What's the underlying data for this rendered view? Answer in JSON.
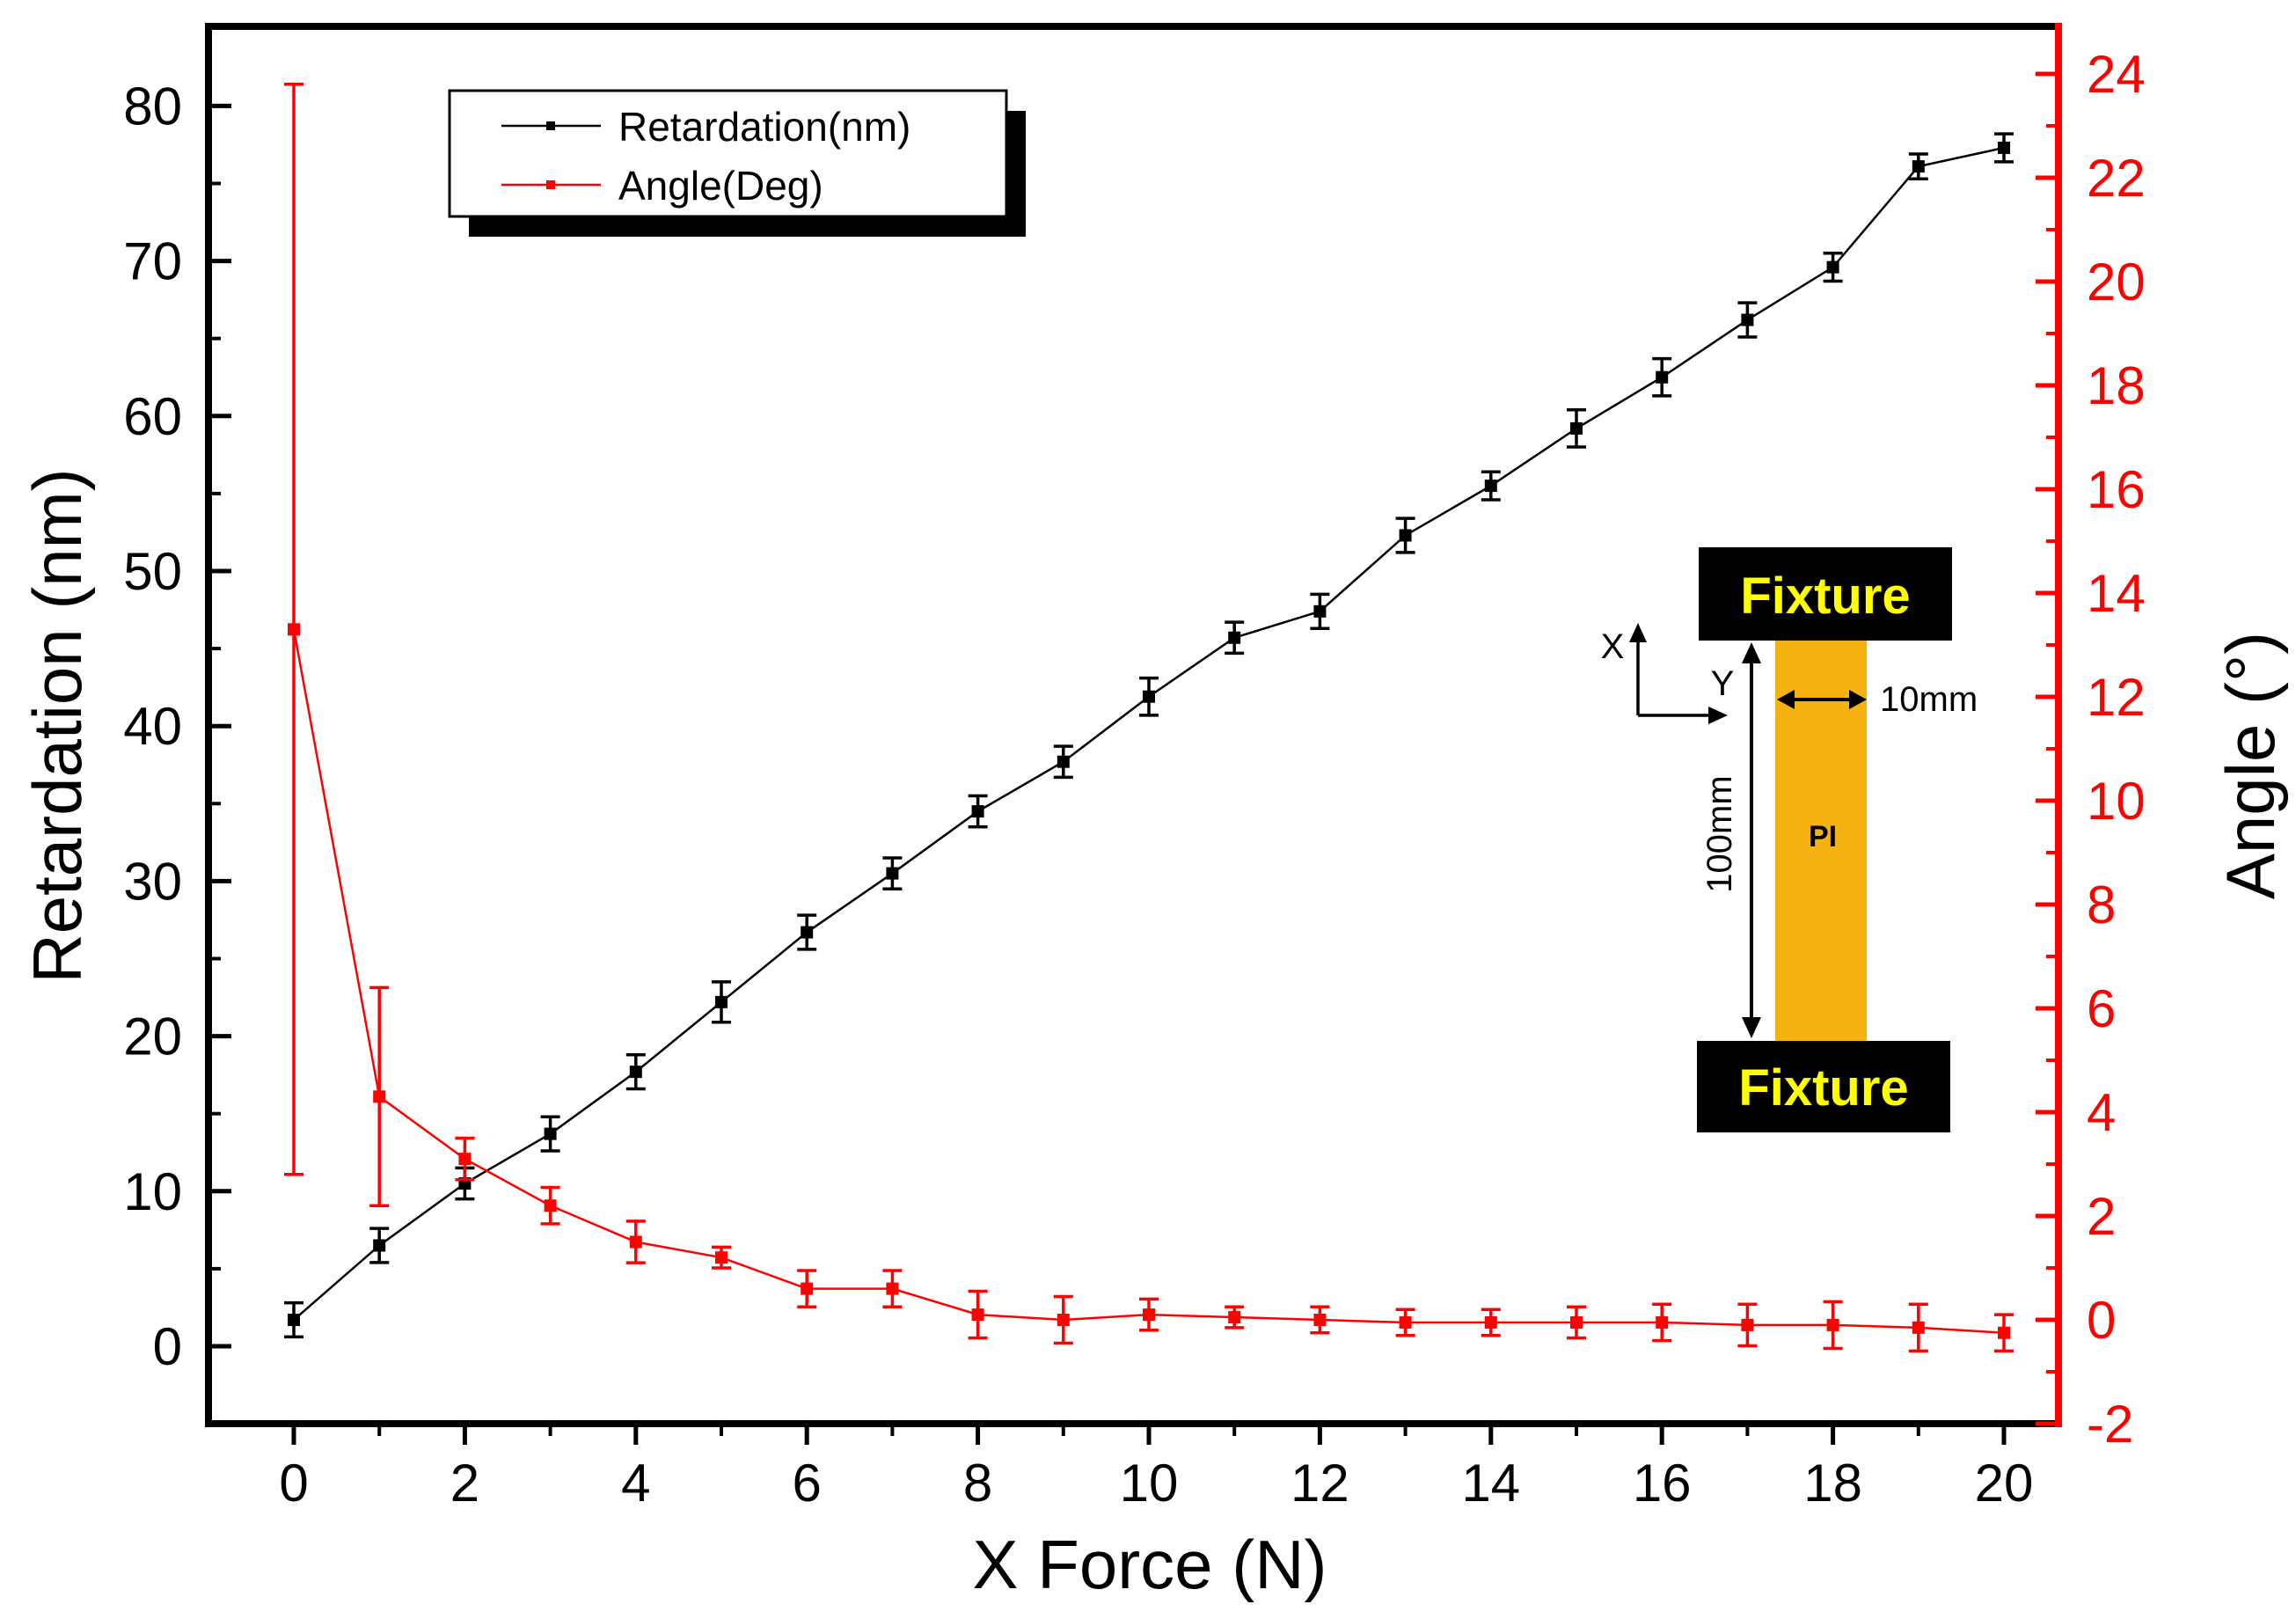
{
  "chart_data": {
    "type": "line",
    "xlabel": "X Force (N)",
    "ylabel": "Retardation (nm)",
    "y2label": "Angle (°)",
    "xlim": [
      -1,
      21
    ],
    "ylim": [
      -5,
      85
    ],
    "y2lim": [
      -2,
      25
    ],
    "x_ticks": [
      0,
      2,
      4,
      6,
      8,
      10,
      12,
      14,
      16,
      18,
      20
    ],
    "y_ticks": [
      0,
      10,
      20,
      30,
      40,
      50,
      60,
      70,
      80
    ],
    "y2_ticks": [
      -2,
      0,
      2,
      4,
      6,
      8,
      10,
      12,
      14,
      16,
      18,
      20,
      22,
      24
    ],
    "x": [
      0,
      1,
      2,
      3,
      4,
      5,
      6,
      7,
      8,
      9,
      10,
      11,
      12,
      13,
      14,
      15,
      16,
      17,
      18,
      19,
      20
    ],
    "series": [
      {
        "name": "Retardation(nm)",
        "axis": "left",
        "color": "#000000",
        "values": [
          1.7,
          6.5,
          10.5,
          13.7,
          17.7,
          22.2,
          26.7,
          30.5,
          34.5,
          37.7,
          41.9,
          45.7,
          47.4,
          52.3,
          55.5,
          59.2,
          62.5,
          66.2,
          69.6,
          76.1,
          77.3
        ],
        "errors": [
          1.1,
          1.1,
          1.0,
          1.1,
          1.1,
          1.3,
          1.1,
          1.0,
          1.0,
          1.0,
          1.2,
          1.0,
          1.1,
          1.1,
          0.9,
          1.2,
          1.2,
          1.1,
          0.9,
          0.8,
          0.9
        ]
      },
      {
        "name": "Angle(Deg)",
        "axis": "right",
        "color": "#ff0000",
        "values": [
          13.3,
          4.3,
          3.1,
          2.2,
          1.5,
          1.2,
          0.6,
          0.6,
          0.1,
          0.0,
          0.1,
          0.05,
          0.0,
          -0.05,
          -0.05,
          -0.05,
          -0.05,
          -0.1,
          -0.1,
          -0.15,
          -0.25
        ],
        "errors": [
          10.5,
          2.1,
          0.4,
          0.35,
          0.4,
          0.2,
          0.35,
          0.35,
          0.45,
          0.45,
          0.3,
          0.2,
          0.25,
          0.25,
          0.25,
          0.3,
          0.35,
          0.4,
          0.45,
          0.45,
          0.35
        ]
      }
    ],
    "inset": {
      "fixture_top": "Fixture",
      "fixture_bottom": "Fixture",
      "sample_label": "PI",
      "width_label": "10mm",
      "length_label": "100mm",
      "axis_x_label": "X",
      "axis_y_label": "Y"
    }
  }
}
